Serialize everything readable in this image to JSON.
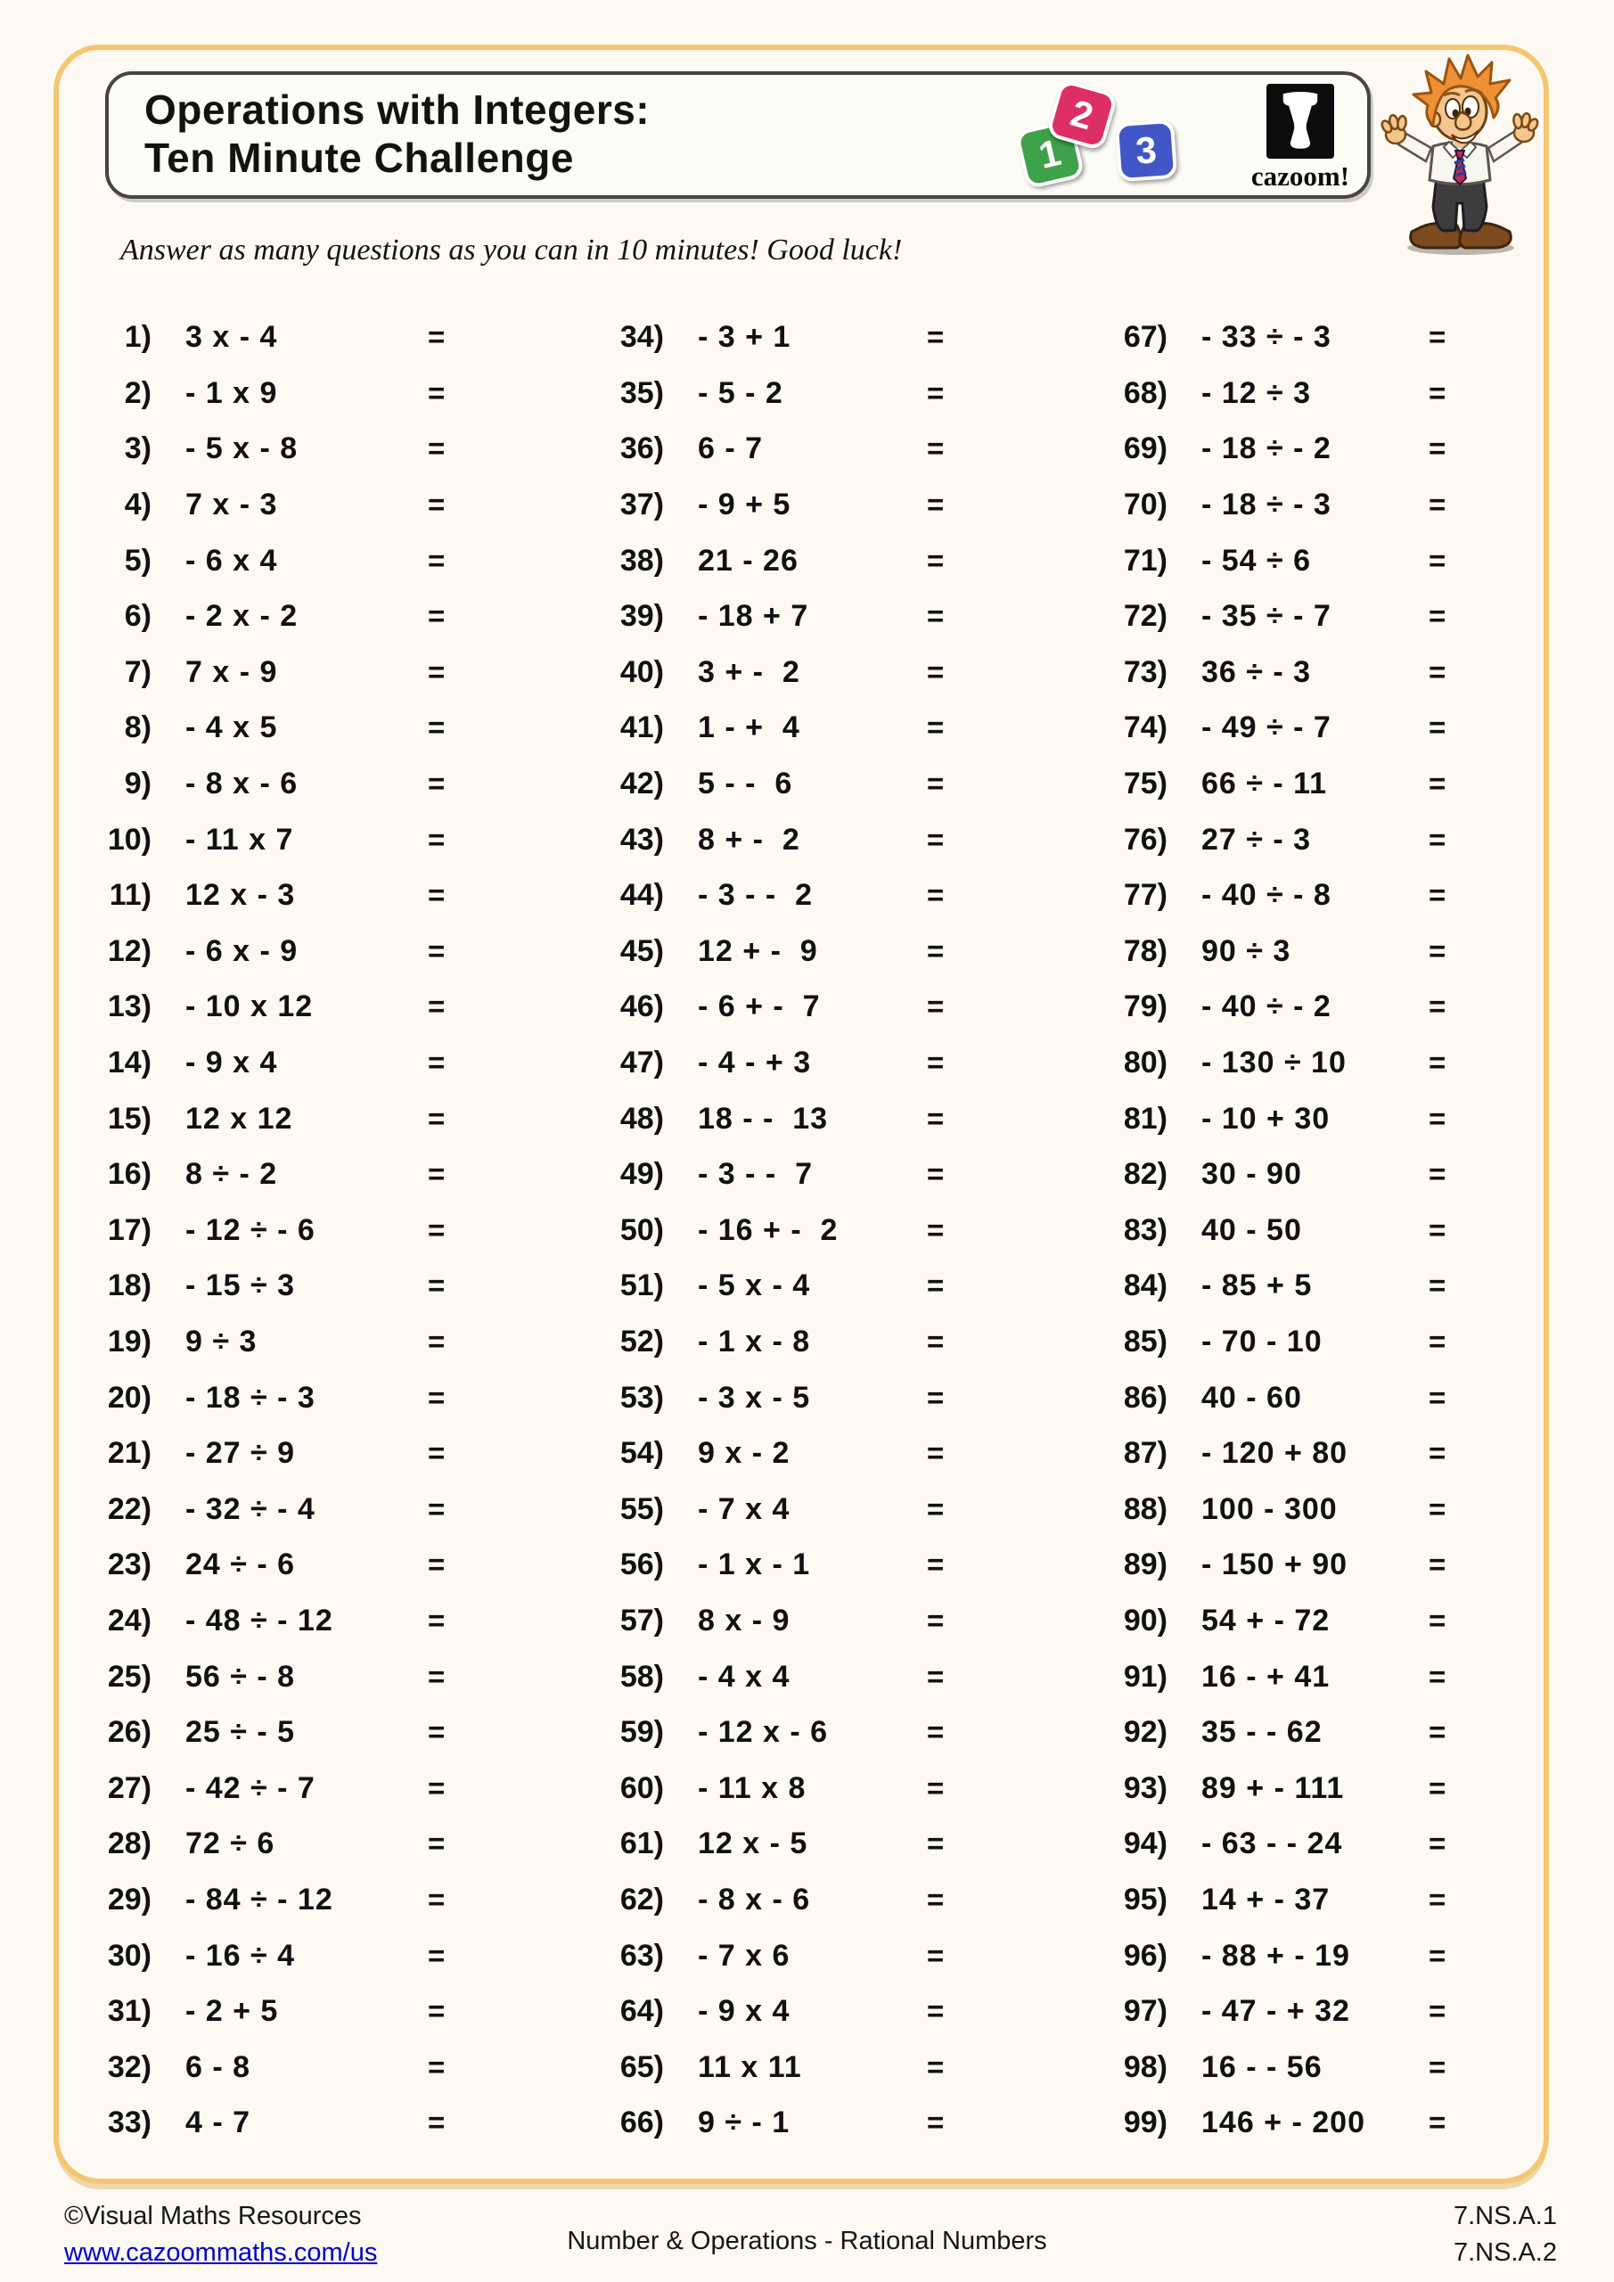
{
  "header": {
    "title_line1": "Operations with Integers:",
    "title_line2": "Ten Minute Challenge",
    "logo": {
      "tile1": "1",
      "tile2": "2",
      "tile3": "3",
      "tile1_color": "#3ea24b",
      "tile2_color": "#dd2f66",
      "tile3_color": "#4356c7",
      "brand": "cazoom!"
    }
  },
  "instructions": "Answer as many questions as you can in 10 minutes! Good luck!",
  "equals_sign": "=",
  "questions": {
    "col1": [
      {
        "n": "1)",
        "e": "3 x - 4"
      },
      {
        "n": "2)",
        "e": "- 1 x 9"
      },
      {
        "n": "3)",
        "e": "- 5 x - 8"
      },
      {
        "n": "4)",
        "e": "7 x - 3"
      },
      {
        "n": "5)",
        "e": "- 6 x 4"
      },
      {
        "n": "6)",
        "e": "- 2 x - 2"
      },
      {
        "n": "7)",
        "e": "7 x - 9"
      },
      {
        "n": "8)",
        "e": "- 4 x 5"
      },
      {
        "n": "9)",
        "e": "- 8 x - 6"
      },
      {
        "n": "10)",
        "e": "- 11 x 7"
      },
      {
        "n": "11)",
        "e": "12 x - 3"
      },
      {
        "n": "12)",
        "e": "- 6 x - 9"
      },
      {
        "n": "13)",
        "e": "- 10 x 12"
      },
      {
        "n": "14)",
        "e": "- 9 x 4"
      },
      {
        "n": "15)",
        "e": "12 x 12"
      },
      {
        "n": "16)",
        "e": "8 ÷ - 2"
      },
      {
        "n": "17)",
        "e": "- 12 ÷ - 6"
      },
      {
        "n": "18)",
        "e": "- 15 ÷ 3"
      },
      {
        "n": "19)",
        "e": "9 ÷ 3"
      },
      {
        "n": "20)",
        "e": "- 18 ÷ - 3"
      },
      {
        "n": "21)",
        "e": "- 27 ÷ 9"
      },
      {
        "n": "22)",
        "e": "- 32 ÷ - 4"
      },
      {
        "n": "23)",
        "e": "24 ÷ - 6"
      },
      {
        "n": "24)",
        "e": "- 48 ÷ - 12"
      },
      {
        "n": "25)",
        "e": "56 ÷ - 8"
      },
      {
        "n": "26)",
        "e": "25 ÷ - 5"
      },
      {
        "n": "27)",
        "e": "- 42 ÷ - 7"
      },
      {
        "n": "28)",
        "e": "72 ÷ 6"
      },
      {
        "n": "29)",
        "e": "- 84 ÷ - 12"
      },
      {
        "n": "30)",
        "e": "- 16 ÷ 4"
      },
      {
        "n": "31)",
        "e": "- 2 + 5"
      },
      {
        "n": "32)",
        "e": "6 - 8"
      },
      {
        "n": "33)",
        "e": "4 - 7"
      }
    ],
    "col2": [
      {
        "n": "34)",
        "e": "- 3 + 1"
      },
      {
        "n": "35)",
        "e": "- 5 - 2"
      },
      {
        "n": "36)",
        "e": "6 - 7"
      },
      {
        "n": "37)",
        "e": "- 9 + 5"
      },
      {
        "n": "38)",
        "e": "21 - 26"
      },
      {
        "n": "39)",
        "e": "- 18 + 7"
      },
      {
        "n": "40)",
        "e": "3 + -  2"
      },
      {
        "n": "41)",
        "e": "1 - +  4"
      },
      {
        "n": "42)",
        "e": "5 - -  6"
      },
      {
        "n": "43)",
        "e": "8 + -  2"
      },
      {
        "n": "44)",
        "e": "- 3 - -  2"
      },
      {
        "n": "45)",
        "e": "12 + -  9"
      },
      {
        "n": "46)",
        "e": "- 6 + -  7"
      },
      {
        "n": "47)",
        "e": "- 4 - + 3"
      },
      {
        "n": "48)",
        "e": "18 - -  13"
      },
      {
        "n": "49)",
        "e": "- 3 - -  7"
      },
      {
        "n": "50)",
        "e": "- 16 + -  2"
      },
      {
        "n": "51)",
        "e": "- 5 x - 4"
      },
      {
        "n": "52)",
        "e": "- 1 x - 8"
      },
      {
        "n": "53)",
        "e": "- 3 x - 5"
      },
      {
        "n": "54)",
        "e": "9 x - 2"
      },
      {
        "n": "55)",
        "e": "- 7 x 4"
      },
      {
        "n": "56)",
        "e": "- 1 x - 1"
      },
      {
        "n": "57)",
        "e": "8 x - 9"
      },
      {
        "n": "58)",
        "e": "- 4 x 4"
      },
      {
        "n": "59)",
        "e": "- 12 x - 6"
      },
      {
        "n": "60)",
        "e": "- 11 x 8"
      },
      {
        "n": "61)",
        "e": "12 x - 5"
      },
      {
        "n": "62)",
        "e": "- 8 x - 6"
      },
      {
        "n": "63)",
        "e": "- 7 x 6"
      },
      {
        "n": "64)",
        "e": "- 9 x 4"
      },
      {
        "n": "65)",
        "e": "11 x 11"
      },
      {
        "n": "66)",
        "e": "9 ÷ - 1"
      }
    ],
    "col3": [
      {
        "n": "67)",
        "e": "- 33 ÷ - 3"
      },
      {
        "n": "68)",
        "e": "- 12 ÷ 3"
      },
      {
        "n": "69)",
        "e": "- 18 ÷ - 2"
      },
      {
        "n": "70)",
        "e": "- 18 ÷ - 3"
      },
      {
        "n": "71)",
        "e": "- 54 ÷ 6"
      },
      {
        "n": "72)",
        "e": "- 35 ÷ - 7"
      },
      {
        "n": "73)",
        "e": "36 ÷ - 3"
      },
      {
        "n": "74)",
        "e": "- 49 ÷ - 7"
      },
      {
        "n": "75)",
        "e": "66 ÷ - 11"
      },
      {
        "n": "76)",
        "e": "27 ÷ - 3"
      },
      {
        "n": "77)",
        "e": "- 40 ÷ - 8"
      },
      {
        "n": "78)",
        "e": "90 ÷ 3"
      },
      {
        "n": "79)",
        "e": "- 40 ÷ - 2"
      },
      {
        "n": "80)",
        "e": "- 130 ÷ 10"
      },
      {
        "n": "81)",
        "e": "- 10 + 30"
      },
      {
        "n": "82)",
        "e": "30 - 90"
      },
      {
        "n": "83)",
        "e": "40 - 50"
      },
      {
        "n": "84)",
        "e": "- 85 + 5"
      },
      {
        "n": "85)",
        "e": "- 70 - 10"
      },
      {
        "n": "86)",
        "e": "40 - 60"
      },
      {
        "n": "87)",
        "e": "- 120 + 80"
      },
      {
        "n": "88)",
        "e": "100 - 300"
      },
      {
        "n": "89)",
        "e": "- 150 + 90"
      },
      {
        "n": "90)",
        "e": "54 + - 72"
      },
      {
        "n": "91)",
        "e": "16 - + 41"
      },
      {
        "n": "92)",
        "e": "35 - - 62"
      },
      {
        "n": "93)",
        "e": "89 + - 111"
      },
      {
        "n": "94)",
        "e": "- 63 - - 24"
      },
      {
        "n": "95)",
        "e": "14 + - 37"
      },
      {
        "n": "96)",
        "e": "- 88 + - 19"
      },
      {
        "n": "97)",
        "e": "- 47 - + 32"
      },
      {
        "n": "98)",
        "e": "16 - - 56"
      },
      {
        "n": "99)",
        "e": "146 + - 200"
      }
    ]
  },
  "footer": {
    "copyright": "©Visual Maths Resources",
    "link": "www.cazoommaths.com/us",
    "center": "Number & Operations - Rational Numbers",
    "standard1": "7.NS.A.1",
    "standard2": "7.NS.A.2"
  }
}
